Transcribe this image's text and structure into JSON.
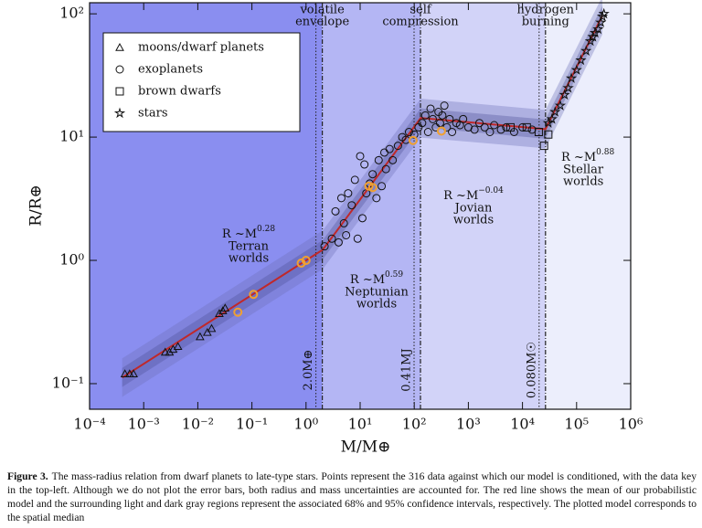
{
  "chart_data": {
    "type": "scatter",
    "xlabel": "M/M⊕",
    "ylabel": "R/R⊕",
    "log_x": true,
    "log_y": true,
    "xlim": [
      0.0001,
      1000000
    ],
    "ylim": [
      0.062,
      123
    ],
    "xticks": [
      {
        "value": 0.0001,
        "label": "10⁻⁴"
      },
      {
        "value": 0.001,
        "label": "10⁻³"
      },
      {
        "value": 0.01,
        "label": "10⁻²"
      },
      {
        "value": 0.1,
        "label": "10⁻¹"
      },
      {
        "value": 1,
        "label": "10⁰"
      },
      {
        "value": 10,
        "label": "10¹"
      },
      {
        "value": 100,
        "label": "10²"
      },
      {
        "value": 1000,
        "label": "10³"
      },
      {
        "value": 10000,
        "label": "10⁴"
      },
      {
        "value": 100000,
        "label": "10⁵"
      },
      {
        "value": 1000000,
        "label": "10⁶"
      }
    ],
    "yticks": [
      {
        "value": 0.1,
        "label": "10⁻¹"
      },
      {
        "value": 1,
        "label": "10⁰"
      },
      {
        "value": 10,
        "label": "10¹"
      },
      {
        "value": 100,
        "label": "10²"
      }
    ],
    "legend": "upper left",
    "series": [
      {
        "name": "moons/dwarf planets",
        "marker": "triangle",
        "color": "#111111",
        "x": [
          0.00045,
          0.00055,
          0.00065,
          0.0025,
          0.003,
          0.0035,
          0.0043,
          0.011,
          0.015,
          0.018,
          0.025,
          0.029,
          0.032
        ],
        "values": [
          0.12,
          0.12,
          0.12,
          0.18,
          0.18,
          0.19,
          0.2,
          0.24,
          0.26,
          0.28,
          0.37,
          0.39,
          0.41
        ]
      },
      {
        "name": "exoplanets",
        "marker": "circle",
        "color": "#111111",
        "x": [
          2.2,
          3,
          3.5,
          4,
          4.5,
          5,
          5.5,
          6,
          7,
          8,
          9,
          10,
          11,
          12,
          13,
          15,
          17,
          20,
          22,
          25,
          28,
          30,
          35,
          40,
          50,
          60,
          70,
          80,
          100,
          120,
          140,
          160,
          180,
          200,
          220,
          250,
          280,
          300,
          330,
          360,
          400,
          450,
          500,
          600,
          700,
          800,
          1000,
          1300,
          1600,
          2000,
          2500,
          3000,
          4000,
          5000,
          7000,
          10000,
          15000
        ],
        "values": [
          1.3,
          1.5,
          2.5,
          1.4,
          3.2,
          2.0,
          1.6,
          3.5,
          2.8,
          4.5,
          1.5,
          7.0,
          2.2,
          6.0,
          3.5,
          4.2,
          5.0,
          3.2,
          6.5,
          4.0,
          7.5,
          5.5,
          8.0,
          6.5,
          8.5,
          10,
          9.5,
          11,
          10.5,
          12,
          13,
          15,
          11,
          17,
          14,
          12,
          16,
          13,
          15,
          18,
          12,
          14,
          11,
          13,
          12.5,
          14,
          12,
          11.5,
          13,
          12,
          11,
          12.5,
          11.5,
          12,
          11,
          12,
          11.5
        ]
      },
      {
        "name": "brown dwarfs",
        "marker": "square",
        "color": "#111111",
        "x": [
          6000,
          12000,
          20000,
          25000,
          30000
        ],
        "values": [
          12,
          12,
          11,
          8.5,
          10.5
        ]
      },
      {
        "name": "stars",
        "marker": "star",
        "color": "#111111",
        "x": [
          30000,
          35000,
          40000,
          50000,
          60000,
          70000,
          80000,
          100000,
          120000,
          150000,
          180000,
          200000,
          220000,
          250000,
          280000,
          300000,
          320000
        ],
        "values": [
          13,
          14,
          16,
          18,
          22,
          25,
          30,
          35,
          42,
          50,
          60,
          65,
          70,
          75,
          85,
          95,
          100
        ]
      },
      {
        "marker": "circle",
        "color": "#f0a030",
        "x": [
          0.055,
          0.107,
          0.815,
          1,
          14.5,
          17.1,
          95,
          318
        ],
        "values": [
          0.38,
          0.53,
          0.95,
          1,
          4.0,
          3.9,
          9.4,
          11.2
        ]
      }
    ],
    "model": {
      "color": "#c0282a",
      "x": [
        0.0004,
        2.04,
        131.6,
        26600,
        300000
      ],
      "values": [
        0.112,
        1.22,
        14.3,
        11.6,
        97
      ],
      "band95_upper": [
        0.16,
        1.75,
        20.5,
        16.6,
        139
      ],
      "band95_lower": [
        0.078,
        0.85,
        9.9,
        8.1,
        68
      ],
      "band68_upper": [
        0.134,
        1.46,
        17.1,
        13.9,
        116
      ],
      "band68_lower": [
        0.094,
        1.02,
        12.0,
        9.7,
        81
      ]
    },
    "transitions": [
      {
        "x": 2.0,
        "label": [
          "volatile",
          "envelope"
        ],
        "value_label": "2.0M⊕"
      },
      {
        "x": 130.3,
        "label": [
          "self",
          "compression"
        ],
        "value_label": "0.41MJ"
      },
      {
        "x": 26640,
        "label": [
          "hydrogen",
          "burning"
        ],
        "value_label": "0.080M☉"
      }
    ],
    "regions": [
      {
        "formula": "R ~M",
        "exponent": "0.28",
        "name": [
          "Terran",
          "worlds"
        ],
        "color": "#8a8ef0"
      },
      {
        "formula": "R ~M",
        "exponent": "0.59",
        "name": [
          "Neptunian",
          "worlds"
        ],
        "color": "#b4b6f4"
      },
      {
        "formula": "R ~M",
        "exponent": "−0.04",
        "name": [
          "Jovian",
          "worlds"
        ],
        "color": "#d2d3f8"
      },
      {
        "formula": "R ~M",
        "exponent": "0.88",
        "name": [
          "Stellar",
          "worlds"
        ],
        "color": "#eceefc"
      }
    ]
  },
  "caption": {
    "label": "Figure 3.",
    "text": "The mass-radius relation from dwarf planets to late-type stars. Points represent the 316 data against which our model is conditioned, with the data key in the top-left. Although we do not plot the error bars, both radius and mass uncertainties are accounted for. The red line shows the mean of our probabilistic model and the surrounding light and dark gray regions represent the associated 68% and 95% confidence intervals, respectively. The plotted model corresponds to the spatial median"
  }
}
